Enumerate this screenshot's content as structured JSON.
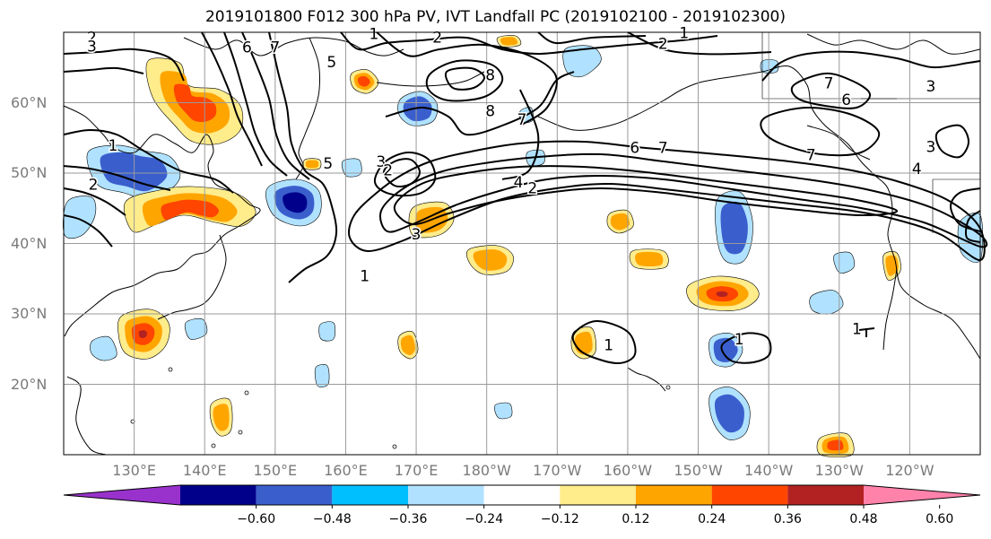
{
  "title": "2019101800 F012 300 hPa PV, IVT Landfall PC (2019102100 - 2019102300)",
  "map": {
    "projection": "PlateCarree",
    "lon_range": [
      120,
      250
    ],
    "lat_range": [
      10,
      70
    ],
    "gridlines": true,
    "coastlines": true,
    "fill_variable": "IVT Landfall PC",
    "contour_variable": "300 hPa PV",
    "contour_color": "#000000"
  },
  "lat_labels": [
    {
      "text": "60°N",
      "lat": 60
    },
    {
      "text": "50°N",
      "lat": 50
    },
    {
      "text": "40°N",
      "lat": 40
    },
    {
      "text": "30°N",
      "lat": 30
    },
    {
      "text": "20°N",
      "lat": 20
    }
  ],
  "lon_labels": [
    {
      "text": "130°E",
      "lon": 130
    },
    {
      "text": "140°E",
      "lon": 140
    },
    {
      "text": "150°E",
      "lon": 150
    },
    {
      "text": "160°E",
      "lon": 160
    },
    {
      "text": "170°E",
      "lon": 170
    },
    {
      "text": "180°W",
      "lon": 180
    },
    {
      "text": "170°W",
      "lon": 190
    },
    {
      "text": "160°W",
      "lon": 200
    },
    {
      "text": "150°W",
      "lon": 210
    },
    {
      "text": "140°W",
      "lon": 220
    },
    {
      "text": "130°W",
      "lon": 230
    },
    {
      "text": "120°W",
      "lon": 240
    }
  ],
  "contour_labels": [
    {
      "text": "2",
      "lon": 124,
      "lat": 69.2
    },
    {
      "text": "3",
      "lon": 124,
      "lat": 67.9
    },
    {
      "text": "6",
      "lon": 146,
      "lat": 67.8
    },
    {
      "text": "7",
      "lon": 150,
      "lat": 67.8
    },
    {
      "text": "5",
      "lon": 158,
      "lat": 65.7
    },
    {
      "text": "1",
      "lon": 164,
      "lat": 69.7
    },
    {
      "text": "2",
      "lon": 173,
      "lat": 69.2
    },
    {
      "text": "8",
      "lon": 180.5,
      "lat": 63.8
    },
    {
      "text": "8",
      "lon": 180.5,
      "lat": 58.7
    },
    {
      "text": "7",
      "lon": 185,
      "lat": 57.5
    },
    {
      "text": "2",
      "lon": 205,
      "lat": 68.3
    },
    {
      "text": "1",
      "lon": 208,
      "lat": 69.8
    },
    {
      "text": "6",
      "lon": 201,
      "lat": 53.5
    },
    {
      "text": "7",
      "lon": 205,
      "lat": 53.5
    },
    {
      "text": "7",
      "lon": 228.5,
      "lat": 62.7
    },
    {
      "text": "6",
      "lon": 231,
      "lat": 60.3
    },
    {
      "text": "7",
      "lon": 226,
      "lat": 52.5
    },
    {
      "text": "3",
      "lon": 243,
      "lat": 62.2
    },
    {
      "text": "3",
      "lon": 243,
      "lat": 53.6
    },
    {
      "text": "4",
      "lon": 241,
      "lat": 50.5
    },
    {
      "text": "5",
      "lon": 157.5,
      "lat": 51.3
    },
    {
      "text": "3",
      "lon": 165,
      "lat": 51.5
    },
    {
      "text": "2",
      "lon": 166,
      "lat": 50.3
    },
    {
      "text": "4",
      "lon": 184.5,
      "lat": 48.6
    },
    {
      "text": "2",
      "lon": 186.5,
      "lat": 47.8
    },
    {
      "text": "3",
      "lon": 170,
      "lat": 41.2
    },
    {
      "text": "1",
      "lon": 162.7,
      "lat": 35.3
    },
    {
      "text": "1",
      "lon": 127,
      "lat": 53.8
    },
    {
      "text": "2",
      "lon": 124.2,
      "lat": 48.3
    },
    {
      "text": "1",
      "lon": 197.3,
      "lat": 25.5
    },
    {
      "text": "1",
      "lon": 215.8,
      "lat": 26.3
    },
    {
      "text": "1",
      "lon": 232.5,
      "lat": 27.8
    }
  ],
  "colorbar": {
    "levels": [
      -0.6,
      -0.48,
      -0.36,
      -0.24,
      -0.12,
      0.12,
      0.24,
      0.36,
      0.48,
      0.6
    ],
    "colors": [
      "#9932cc",
      "#00008b",
      "#3a5fcd",
      "#00bfff",
      "#b0e2ff",
      "#ffffff",
      "#ffec8b",
      "#ffa500",
      "#ff4500",
      "#b22222",
      "#ff82ab"
    ],
    "tick_labels": [
      "−0.60",
      "−0.48",
      "−0.36",
      "−0.24",
      "−0.12",
      "0.12",
      "0.24",
      "0.36",
      "0.48",
      "0.60"
    ],
    "extend": "both"
  }
}
